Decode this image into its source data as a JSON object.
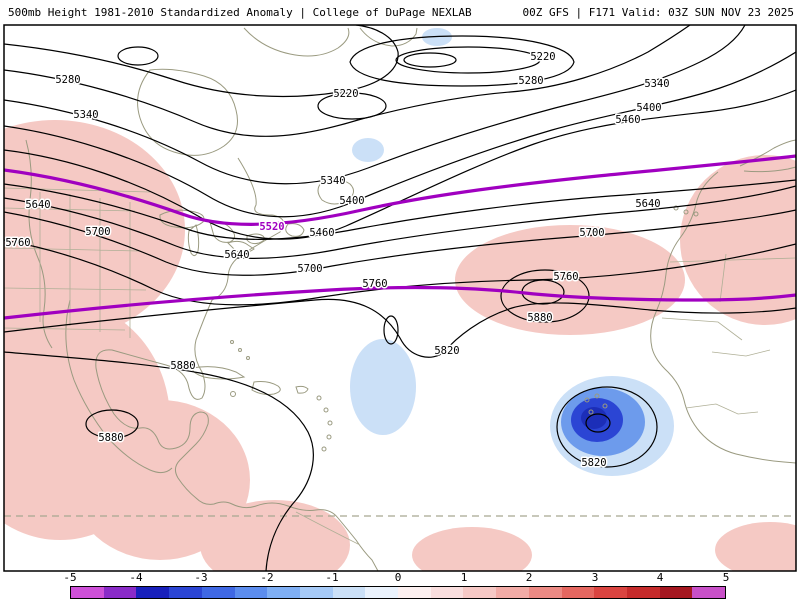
{
  "header": {
    "title_left": "500mb Height 1981-2010 Standardized Anomaly | College of DuPage NEXLAB",
    "title_right": "00Z GFS | F171 Valid: 03Z SUN NOV 23 2025"
  },
  "map": {
    "variable": "500mb Height Standardized Anomaly",
    "contour_labels": [
      "5280",
      "5340",
      "5640",
      "5700",
      "5760",
      "5220",
      "5280",
      "5220",
      "5340",
      "5400",
      "5460",
      "5520",
      "5640",
      "5700",
      "5760",
      "5340",
      "5400",
      "5460",
      "5640",
      "5700",
      "5760",
      "5820",
      "5880",
      "5880",
      "5880",
      "5820"
    ],
    "highlighted_contours": [
      "5520"
    ],
    "colors": {
      "positive_anomaly_shade": "#F5C9C4",
      "negative_anomaly_light": "#CBE0F7",
      "negative_anomaly_medium": "#6D9BEC",
      "negative_anomaly_dark": "#2B45D4",
      "negative_anomaly_core": "#1C2EB8",
      "highlight_contour": "#A000C0",
      "contour": "#000000",
      "coastline": "#9A9A80"
    }
  },
  "colorbar": {
    "ticks": [
      "-5",
      "-4",
      "-3",
      "-2",
      "-1",
      "0",
      "1",
      "2",
      "3",
      "4",
      "5"
    ],
    "segment_colors": [
      "#CE50D8",
      "#8A2BC8",
      "#1820BC",
      "#2B45D4",
      "#3F68E4",
      "#5C8DEE",
      "#7FAFF4",
      "#A6CAF7",
      "#CBE0F7",
      "#EAF2FC",
      "#FCF0F0",
      "#F9DEDE",
      "#F6C8C5",
      "#F2ABA6",
      "#EC8A84",
      "#E56760",
      "#DA4440",
      "#C62B2B",
      "#A51720",
      "#C850C8"
    ]
  }
}
